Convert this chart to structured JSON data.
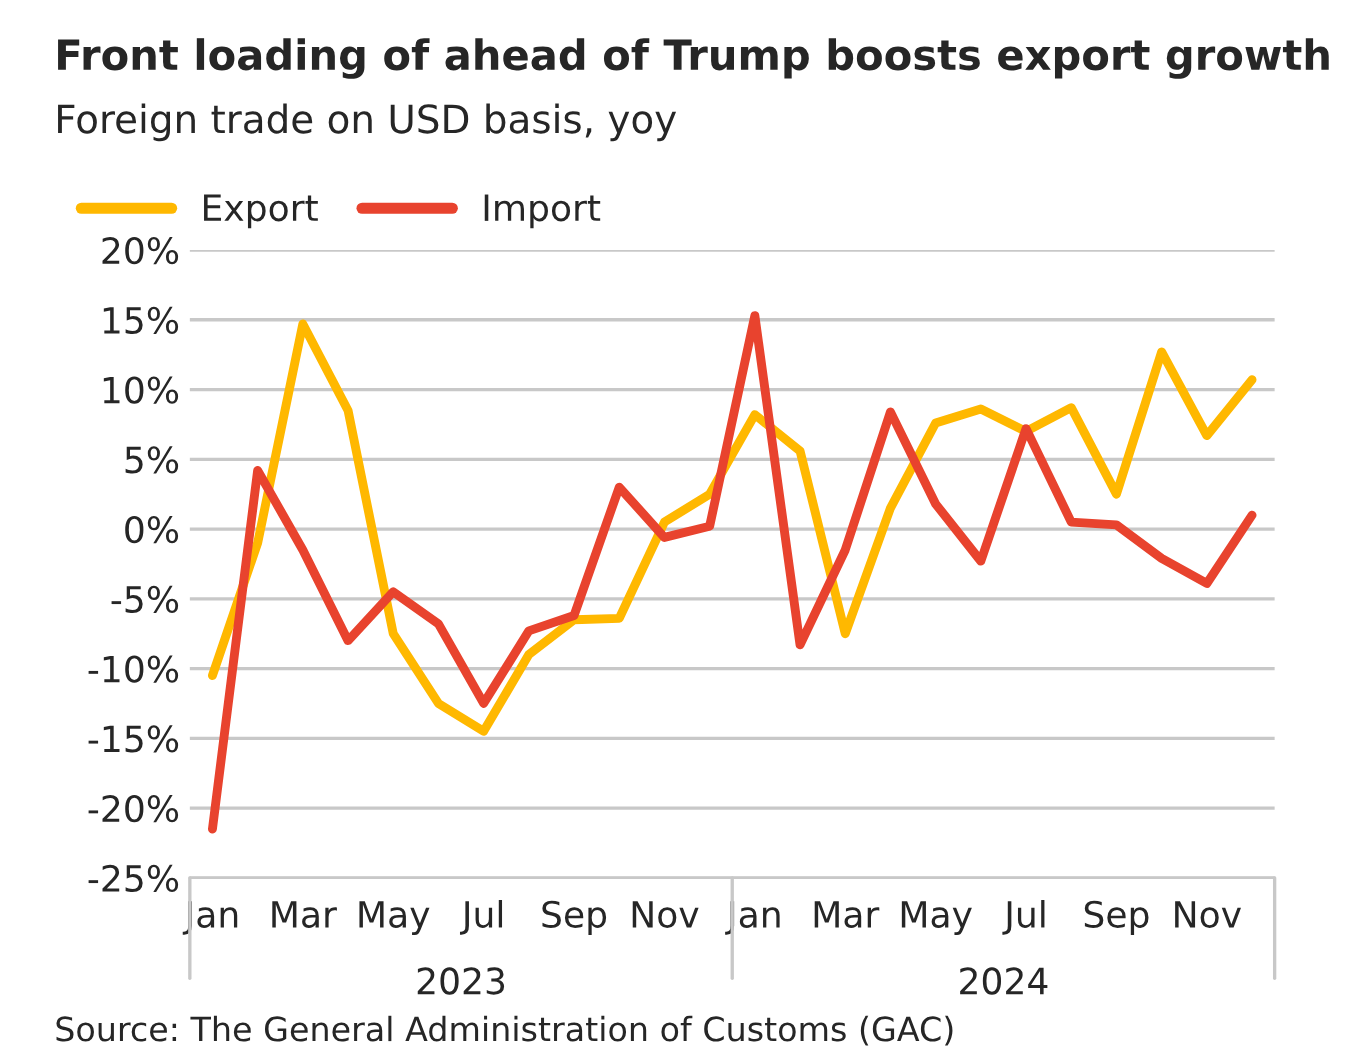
{
  "chart_data": {
    "type": "line",
    "title": "Front loading of ahead of Trump boosts export growth",
    "subtitle": "Foreign trade on USD basis, yoy",
    "categories": [
      "Jan",
      null,
      "Mar",
      null,
      "May",
      null,
      "Jul",
      null,
      "Sep",
      null,
      "Nov",
      null,
      "Jan",
      null,
      "Mar",
      null,
      "May",
      null,
      "Jul",
      null,
      "Sep",
      null,
      "Nov",
      null
    ],
    "series": [
      {
        "name": "Export",
        "color": "#ffb800",
        "values": [
          -10.5,
          -1,
          14.7,
          8.5,
          -7.5,
          -12.5,
          -14.5,
          -9,
          -6.5,
          -6.4,
          0.5,
          2.5,
          8.2,
          5.6,
          -7.5,
          1.5,
          7.6,
          8.6,
          7,
          8.7,
          2.5,
          12.7,
          6.7,
          10.7
        ]
      },
      {
        "name": "Import",
        "color": "#e8432e",
        "values": [
          -21.5,
          4.2,
          -1.5,
          -8,
          -4.5,
          -6.8,
          -12.5,
          -7.3,
          -6.2,
          3,
          -0.6,
          0.2,
          15.3,
          -8.3,
          -1.5,
          8.4,
          1.8,
          -2.3,
          7.2,
          0.5,
          0.3,
          -2.1,
          -3.9,
          1.0
        ]
      }
    ],
    "ylim": [
      -25,
      20
    ],
    "yticks": [
      {
        "value": 20,
        "label": "20%"
      },
      {
        "value": 15,
        "label": "15%"
      },
      {
        "value": 10,
        "label": "10%"
      },
      {
        "value": 5,
        "label": "5%"
      },
      {
        "value": 0,
        "label": "0%"
      },
      {
        "value": -5,
        "label": "-5%"
      },
      {
        "value": -10,
        "label": "-10%"
      },
      {
        "value": -15,
        "label": "-15%"
      },
      {
        "value": -20,
        "label": "-20%"
      },
      {
        "value": -25,
        "label": "-25%"
      }
    ],
    "annotations": [
      "2023",
      "2024",
      "Source: The General Administration of Customs (GAC)"
    ],
    "grid": "y",
    "legend": "top left",
    "marker": "none",
    "line_style": "solid"
  }
}
